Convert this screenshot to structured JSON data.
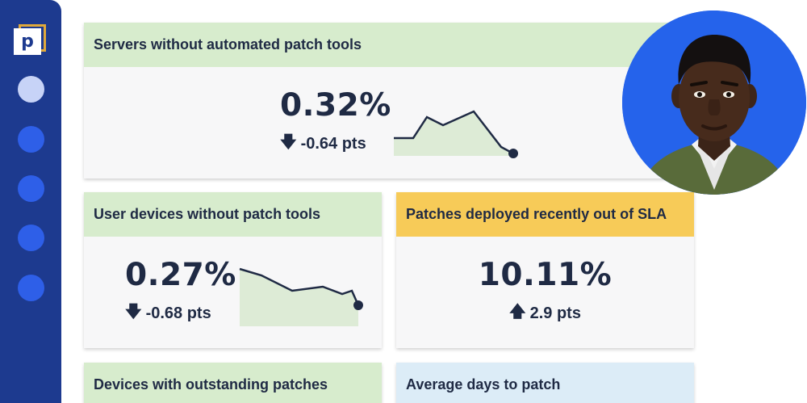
{
  "sidebar": {
    "logo_letter": "p",
    "items": [
      {
        "name": "nav-item-1",
        "active": true
      },
      {
        "name": "nav-item-2",
        "active": false
      },
      {
        "name": "nav-item-3",
        "active": false
      },
      {
        "name": "nav-item-4",
        "active": false
      },
      {
        "name": "nav-item-5",
        "active": false
      }
    ]
  },
  "cards": {
    "servers": {
      "title": "Servers without automated patch tools",
      "value": "0.32%",
      "delta": "-0.64 pts",
      "delta_direction": "down",
      "header_color": "#d7eccd"
    },
    "user_devices": {
      "title": "User devices without patch tools",
      "value": "0.27%",
      "delta": "-0.68 pts",
      "delta_direction": "down",
      "header_color": "#d7eccd"
    },
    "patches_sla": {
      "title": "Patches deployed recently out of SLA",
      "value": "10.11%",
      "delta": "2.9 pts",
      "delta_direction": "up",
      "header_color": "#f7cb58"
    },
    "outstanding": {
      "title": "Devices with outstanding patches",
      "header_color": "#d7eccd"
    },
    "avg_days": {
      "title": "Average days to patch",
      "header_color": "#dcecf7"
    }
  },
  "colors": {
    "sidebar": "#1d3a8f",
    "accent_blue": "#2563eb",
    "sparkline_fill": "#ddebd6",
    "text_dark": "#1f2a44"
  },
  "avatar": {
    "icon": "user-avatar-photo"
  }
}
